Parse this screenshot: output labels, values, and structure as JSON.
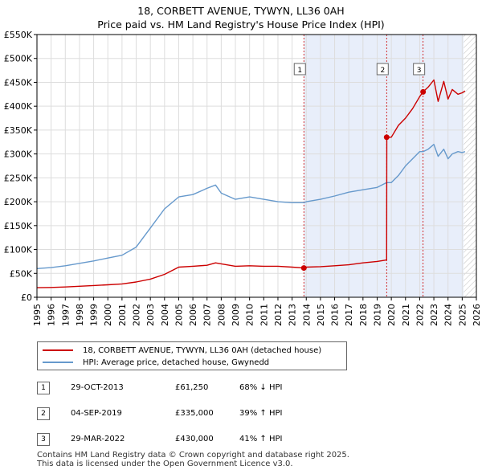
{
  "title": "18, CORBETT AVENUE, TYWYN, LL36 0AH",
  "subtitle": "Price paid vs. HM Land Registry's House Price Index (HPI)",
  "colors": {
    "price_paid": "#cc0000",
    "hpi": "#6699cc",
    "highlight": "#e8eefa",
    "hatch": "#c8c8c8"
  },
  "chart_data": {
    "type": "line",
    "x_range": [
      1995,
      2026
    ],
    "ylim": [
      0,
      550000
    ],
    "yticks": [
      0,
      50000,
      100000,
      150000,
      200000,
      250000,
      300000,
      350000,
      400000,
      450000,
      500000,
      550000
    ],
    "ytick_labels": [
      "£0",
      "£50K",
      "£100K",
      "£150K",
      "£200K",
      "£250K",
      "£300K",
      "£350K",
      "£400K",
      "£450K",
      "£500K",
      "£550K"
    ],
    "xtick_labels": [
      "1995",
      "1996",
      "1997",
      "1998",
      "1999",
      "2000",
      "2001",
      "2002",
      "2003",
      "2004",
      "2005",
      "2006",
      "2007",
      "2008",
      "2009",
      "2010",
      "2011",
      "2012",
      "2013",
      "2014",
      "2015",
      "2016",
      "2017",
      "2018",
      "2019",
      "2020",
      "2021",
      "2022",
      "2023",
      "2024",
      "2025",
      "2026"
    ],
    "highlight_range": [
      2013.83,
      2025.1
    ],
    "forecast_from": 2025.1,
    "series": [
      {
        "name": "18, CORBETT AVENUE, TYWYN, LL36 0AH (detached house)",
        "x": [
          1995,
          1996,
          1997,
          1998,
          1999,
          2000,
          2001,
          2002,
          2003,
          2004,
          2004.6,
          2005,
          2006,
          2007,
          2007.6,
          2008,
          2009,
          2010,
          2011,
          2012,
          2013,
          2013.83,
          2014,
          2015,
          2016,
          2017,
          2018,
          2019,
          2019.67,
          2019.68,
          2020,
          2020.5,
          2021,
          2021.5,
          2022,
          2022.24,
          2022.6,
          2023,
          2023.3,
          2023.7,
          2024,
          2024.3,
          2024.7,
          2025,
          2025.2
        ],
        "y": [
          20000,
          20500,
          21500,
          23000,
          24500,
          26000,
          28000,
          32000,
          38000,
          48000,
          57000,
          63000,
          65000,
          67000,
          72000,
          70000,
          65000,
          66000,
          65000,
          65000,
          63000,
          61250,
          63000,
          64000,
          66000,
          68000,
          72000,
          75000,
          78000,
          335000,
          335000,
          360000,
          375000,
          395000,
          420000,
          430000,
          440000,
          455000,
          410000,
          452000,
          415000,
          435000,
          425000,
          428000,
          432000
        ]
      },
      {
        "name": "HPI: Average price, detached house, Gwynedd",
        "x": [
          1995,
          1996,
          1997,
          1998,
          1999,
          2000,
          2001,
          2002,
          2003,
          2004,
          2004.6,
          2005,
          2006,
          2007,
          2007.6,
          2008,
          2009,
          2010,
          2011,
          2012,
          2013,
          2013.83,
          2014,
          2015,
          2016,
          2017,
          2018,
          2019,
          2019.67,
          2020,
          2020.5,
          2021,
          2021.5,
          2022,
          2022.24,
          2022.6,
          2023,
          2023.3,
          2023.7,
          2024,
          2024.3,
          2024.7,
          2025,
          2025.2
        ],
        "y": [
          60000,
          62000,
          66000,
          71000,
          76000,
          82000,
          88000,
          105000,
          145000,
          185000,
          200000,
          210000,
          215000,
          228000,
          235000,
          218000,
          205000,
          210000,
          205000,
          200000,
          198000,
          198000,
          200000,
          205000,
          212000,
          220000,
          225000,
          230000,
          240000,
          240000,
          255000,
          275000,
          290000,
          305000,
          305000,
          310000,
          320000,
          295000,
          310000,
          290000,
          300000,
          305000,
          303000,
          305000
        ]
      }
    ],
    "transactions": [
      {
        "label": "1",
        "x": 2013.83,
        "date": "29-OCT-2013",
        "price": 61250,
        "price_text": "£61,250",
        "hpi_text": "68% ↓ HPI"
      },
      {
        "label": "2",
        "x": 2019.67,
        "date": "04-SEP-2019",
        "price": 335000,
        "price_text": "£335,000",
        "hpi_text": "39% ↑ HPI"
      },
      {
        "label": "3",
        "x": 2022.24,
        "date": "29-MAR-2022",
        "price": 430000,
        "price_text": "£430,000",
        "hpi_text": "41% ↑ HPI"
      }
    ]
  },
  "footer": {
    "line1": "Contains HM Land Registry data © Crown copyright and database right 2025.",
    "line2": "This data is licensed under the Open Government Licence v3.0."
  }
}
